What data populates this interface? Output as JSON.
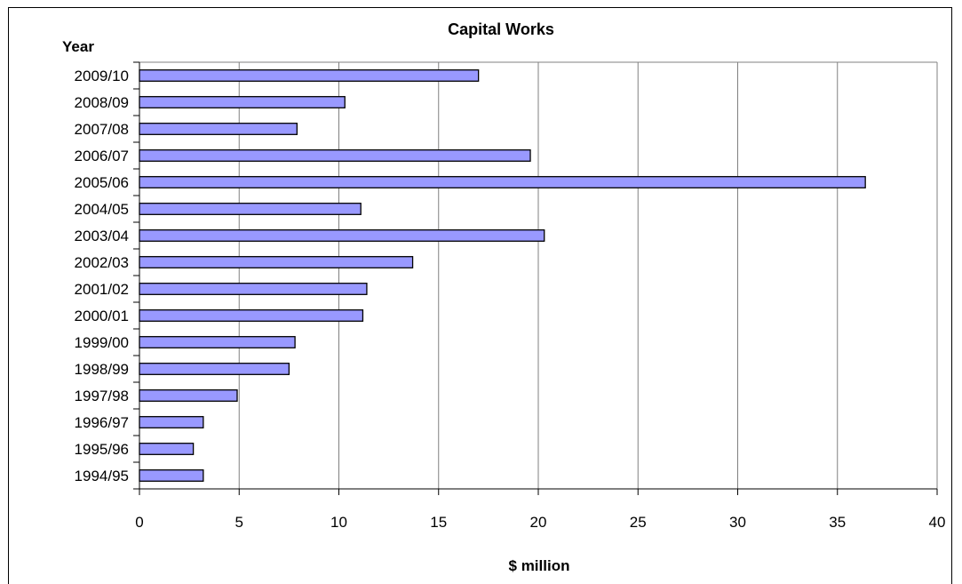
{
  "chart_data": {
    "type": "bar",
    "orientation": "horizontal",
    "title": "Capital Works",
    "ylabel": "Year",
    "xlabel": "$ million",
    "categories": [
      "2009/10",
      "2008/09",
      "2007/08",
      "2006/07",
      "2005/06",
      "2004/05",
      "2003/04",
      "2002/03",
      "2001/02",
      "2000/01",
      "1999/00",
      "1998/99",
      "1997/98",
      "1996/97",
      "1995/96",
      "1994/95"
    ],
    "values": [
      17.0,
      10.3,
      7.9,
      19.6,
      36.4,
      11.1,
      20.3,
      13.7,
      11.4,
      11.2,
      7.8,
      7.5,
      4.9,
      3.2,
      2.7,
      3.2
    ],
    "xlim": [
      0,
      40
    ],
    "xticks": [
      0,
      5,
      10,
      15,
      20,
      25,
      30,
      35,
      40
    ],
    "grid": "vertical",
    "legend": "none",
    "colors": {
      "bar_fill": "#9999ff",
      "bar_stroke": "#000000",
      "grid": "#808080",
      "axis": "#000000"
    }
  }
}
